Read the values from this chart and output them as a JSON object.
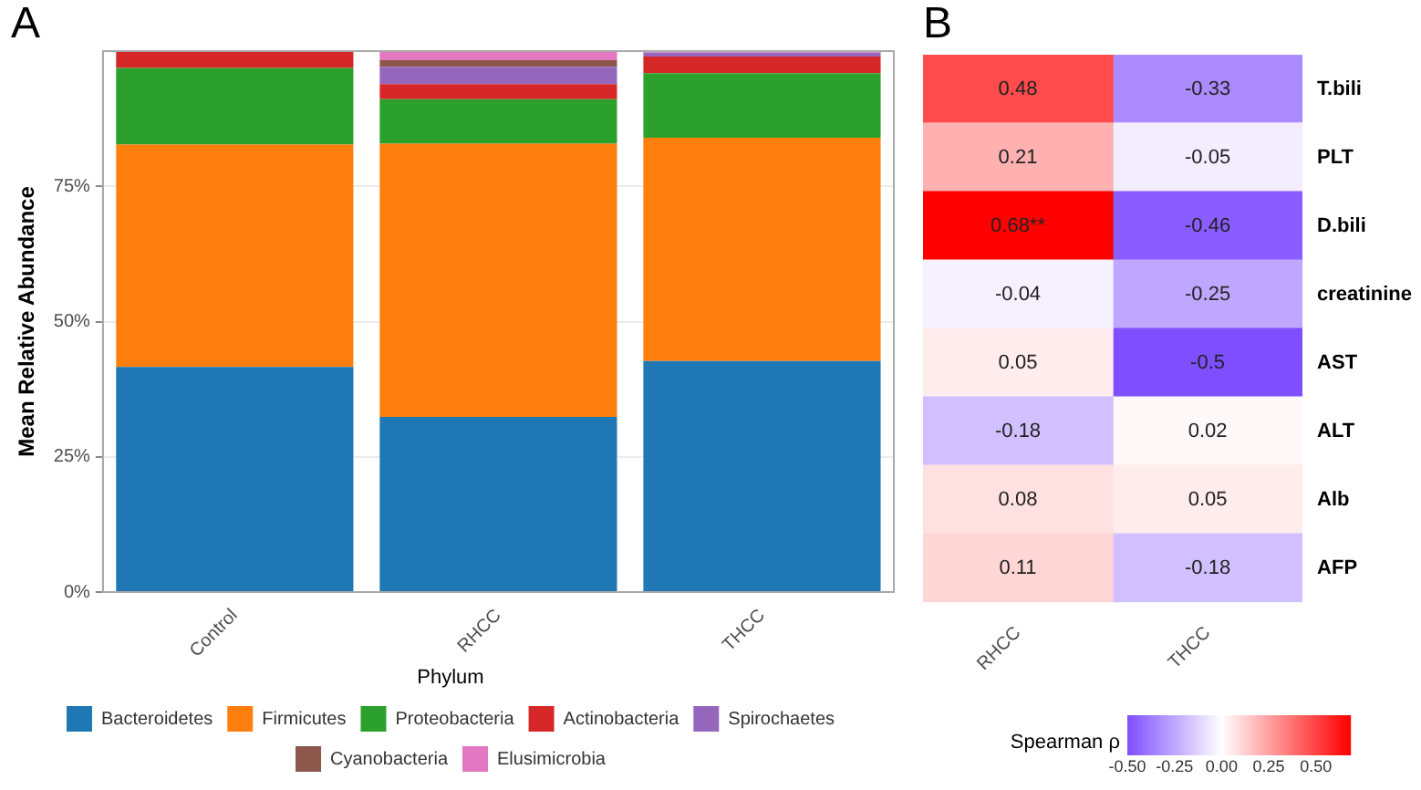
{
  "chart_data": [
    {
      "type": "bar",
      "title": "A",
      "ylabel": "Mean Relative Abundance",
      "legend_title": "Phylum",
      "stacked": true,
      "categories": [
        "Control",
        "RHCC",
        "THCC"
      ],
      "series": [
        {
          "name": "Bacteroidetes",
          "color": "#1f77b4",
          "values": [
            41.6,
            32.4,
            42.7
          ]
        },
        {
          "name": "Firmicutes",
          "color": "#ff7f0e",
          "values": [
            41.1,
            50.5,
            41.3
          ]
        },
        {
          "name": "Proteobacteria",
          "color": "#2ca02c",
          "values": [
            14.2,
            8.2,
            11.9
          ]
        },
        {
          "name": "Actinobacteria",
          "color": "#d62728",
          "values": [
            3.1,
            2.8,
            3.1
          ]
        },
        {
          "name": "Spirochaetes",
          "color": "#9467bd",
          "values": [
            0,
            3.2,
            0.7
          ]
        },
        {
          "name": "Cyanobacteria",
          "color": "#8c564b",
          "values": [
            0,
            1.2,
            null
          ]
        },
        {
          "name": "Elusimicrobia",
          "color": "#e377c2",
          "values": [
            0,
            1.7,
            0.2
          ]
        }
      ],
      "ylim": [
        0,
        100
      ],
      "yticks": [
        {
          "value": 0,
          "label": "0%"
        },
        {
          "value": 25,
          "label": "25%"
        },
        {
          "value": 50,
          "label": "50%"
        },
        {
          "value": 75,
          "label": "75%"
        }
      ],
      "grid": "y",
      "legend": "bottom"
    },
    {
      "type": "heatmap",
      "title": "B",
      "clabel": "Spearman ρ",
      "categories": [
        "RHCC",
        "THCC"
      ],
      "y_categories": [
        "T.bili",
        "PLT",
        "D.bili",
        "creatinine",
        "AST",
        "ALT",
        "Alb",
        "AFP"
      ],
      "cells": [
        [
          0.48,
          -0.33
        ],
        [
          0.21,
          -0.05
        ],
        [
          0.68,
          -0.46
        ],
        [
          -0.04,
          -0.25
        ],
        [
          0.05,
          -0.5
        ],
        [
          -0.18,
          0.02
        ],
        [
          0.08,
          0.05
        ],
        [
          0.11,
          -0.18
        ]
      ],
      "cell_labels": [
        [
          "0.48",
          "-0.33"
        ],
        [
          "0.21",
          "-0.05"
        ],
        [
          "0.68**",
          "-0.46"
        ],
        [
          "-0.04",
          "-0.25"
        ],
        [
          "0.05",
          "-0.5"
        ],
        [
          "-0.18",
          "0.02"
        ],
        [
          "0.08",
          "0.05"
        ],
        [
          "0.11",
          "-0.18"
        ]
      ],
      "data_labels": true,
      "clim": [
        -0.5,
        0.68
      ],
      "cticks": [
        {
          "value": -0.5,
          "label": "-0.50"
        },
        {
          "value": -0.25,
          "label": "-0.25"
        },
        {
          "value": 0,
          "label": "0.00"
        },
        {
          "value": 0.25,
          "label": "0.25"
        },
        {
          "value": 0.5,
          "label": "0.50"
        }
      ]
    }
  ]
}
